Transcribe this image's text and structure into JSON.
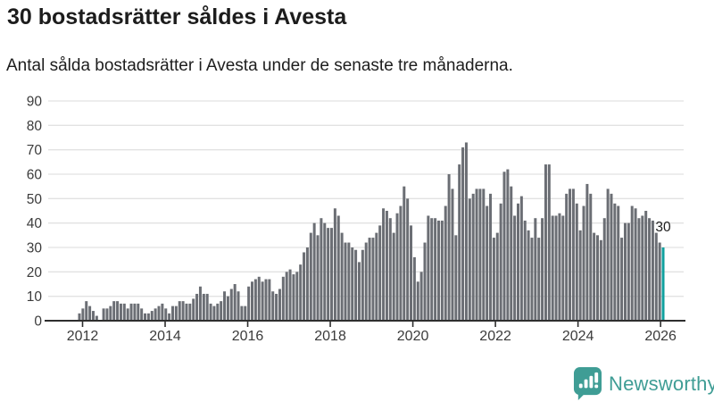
{
  "header": {
    "title": "30 bostadsrätter såldes i Avesta",
    "subtitle": "Antal sålda bostadsrätter i Avesta under de senaste tre månaderna."
  },
  "chart_data": {
    "type": "bar",
    "title": "30 bostadsrätter såldes i Avesta",
    "subtitle": "Antal sålda bostadsrätter i Avesta under de senaste tre månaderna.",
    "frequency": "monthly",
    "x_start": "2011-12",
    "x_end": "2026-01",
    "ylim": [
      0,
      90
    ],
    "yticks": [
      0,
      10,
      20,
      30,
      40,
      50,
      60,
      70,
      80,
      90
    ],
    "xticks": [
      "2012",
      "2014",
      "2016",
      "2018",
      "2020",
      "2022",
      "2024",
      "2026"
    ],
    "grid": true,
    "legend": "none",
    "bar_color": "#6b6e74",
    "values": [
      3,
      5,
      8,
      6,
      4,
      2,
      0,
      5,
      5,
      6,
      8,
      8,
      7,
      7,
      5,
      7,
      7,
      7,
      5,
      3,
      3,
      4,
      5,
      6,
      7,
      5,
      3,
      6,
      6,
      8,
      8,
      7,
      7,
      9,
      11,
      14,
      11,
      11,
      7,
      6,
      7,
      8,
      12,
      10,
      13,
      15,
      12,
      6,
      6,
      14,
      16,
      17,
      18,
      16,
      17,
      17,
      12,
      11,
      13,
      18,
      20,
      21,
      19,
      20,
      23,
      28,
      30,
      36,
      40,
      35,
      42,
      40,
      38,
      38,
      46,
      43,
      36,
      32,
      32,
      30,
      29,
      24,
      29,
      32,
      34,
      34,
      36,
      39,
      46,
      45,
      42,
      36,
      44,
      47,
      55,
      50,
      39,
      26,
      16,
      20,
      32,
      43,
      42,
      42,
      41,
      41,
      47,
      60,
      54,
      35,
      64,
      71,
      73,
      50,
      52,
      54,
      54,
      54,
      47,
      52,
      34,
      36,
      48,
      61,
      62,
      55,
      43,
      48,
      51,
      41,
      37,
      34,
      42,
      34,
      42,
      64,
      64,
      43,
      43,
      44,
      43,
      52,
      54,
      54,
      48,
      37,
      47,
      56,
      52,
      36,
      35,
      33,
      42,
      54,
      52,
      48,
      47,
      34,
      40,
      40,
      47,
      46,
      42,
      43,
      45,
      42,
      41,
      36,
      32,
      30
    ],
    "highlight": {
      "index": 169,
      "value": 30,
      "label": "30",
      "color": "#10a09e"
    },
    "colors": {
      "grid": "#e2e2e2",
      "axis": "#2e2e2e",
      "axis_text": "#3b3b3b",
      "annotation_text": "#1c1c1c"
    }
  },
  "branding": {
    "name": "Newsworthy",
    "color": "#3f9d95",
    "icon": "newsworthy-speech-bubble-chart-icon"
  }
}
